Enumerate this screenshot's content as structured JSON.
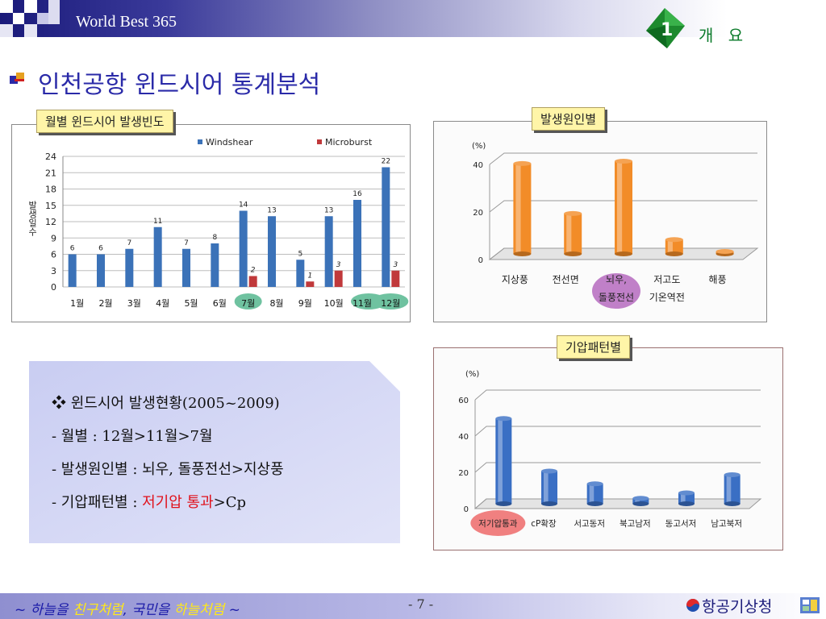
{
  "header": {
    "title": "World Best 365",
    "badge_number": "1",
    "section_label": "개 요"
  },
  "page_title": "인천공항 윈드시어 통계분석",
  "chart_data": [
    {
      "type": "bar",
      "title": "월별 윈드시어 발생빈도",
      "ylabel": "발생일수",
      "ylim": [
        0,
        24
      ],
      "yticks": [
        "0",
        "3",
        "6",
        "9",
        "12",
        "15",
        "18",
        "21",
        "24"
      ],
      "categories": [
        "1월",
        "2월",
        "3월",
        "4월",
        "5월",
        "6월",
        "7월",
        "8월",
        "9월",
        "10월",
        "11월",
        "12월"
      ],
      "series": [
        {
          "name": "Windshear",
          "color": "#3b72b8",
          "values": [
            6,
            6,
            7,
            11,
            7,
            8,
            14,
            13,
            5,
            13,
            16,
            22
          ]
        },
        {
          "name": "Microburst",
          "color": "#c0393b",
          "values": [
            null,
            null,
            null,
            null,
            null,
            null,
            2,
            null,
            1,
            3,
            null,
            3
          ]
        }
      ],
      "data_labels_windshear": [
        "6",
        "6",
        "7",
        "11",
        "7",
        "8",
        "14",
        "13",
        "5",
        "13",
        "16",
        "22"
      ],
      "data_labels_microburst": [
        "",
        "",
        "",
        "",
        "",
        "",
        "2",
        "",
        "1",
        "3",
        "",
        "3"
      ],
      "highlighted_categories": [
        "7월",
        "11월",
        "12월"
      ],
      "highlight_color": "#6fc2a0",
      "legend": "top",
      "grid": true
    },
    {
      "type": "bar",
      "title": "발생원인별",
      "ylabel": "(%)",
      "ylim": [
        0,
        40
      ],
      "yticks": [
        "0",
        "20",
        "40"
      ],
      "categories": [
        "지상풍",
        "전선면",
        "뇌우,|돌풍전선",
        "저고도|기온역전",
        "해풍"
      ],
      "values": [
        38,
        17,
        39,
        6,
        1
      ],
      "bar_color": "#f28c28",
      "highlighted_categories": [
        "뇌우,|돌풍전선"
      ],
      "highlight_color": "#c080c8",
      "grid": true
    },
    {
      "type": "bar",
      "title": "기압패턴별",
      "ylabel": "(%)",
      "ylim": [
        0,
        60
      ],
      "yticks": [
        "0",
        "20",
        "40",
        "60"
      ],
      "categories": [
        "저기압통과",
        "cP확장",
        "서고동저",
        "북고남저",
        "동고서저",
        "남고북저"
      ],
      "values": [
        47,
        18,
        11,
        3,
        6,
        16
      ],
      "bar_color": "#3a6fc4",
      "highlighted_categories": [
        "저기압통과"
      ],
      "highlight_color": "#f08080",
      "grid": true
    }
  ],
  "summary": {
    "line1": "윈드시어 발생현황(2005~2009)",
    "line2": "- 월별 : 12월>11월>7월",
    "line3": "- 발생원인별 : 뇌우, 돌풍전선>지상풍",
    "line4_prefix": "- 기압패턴별 : ",
    "line4_highlight": "저기압 통과",
    "line4_suffix": ">Cp",
    "bullet": "❖"
  },
  "footer": {
    "slogan_1": "~ 하늘을 ",
    "slogan_2": "친구처럼",
    "slogan_3": ", 국민을 ",
    "slogan_4": "하늘처럼",
    "slogan_5": " ~",
    "page_number": "- 7 -",
    "organization": "항공기상청"
  }
}
